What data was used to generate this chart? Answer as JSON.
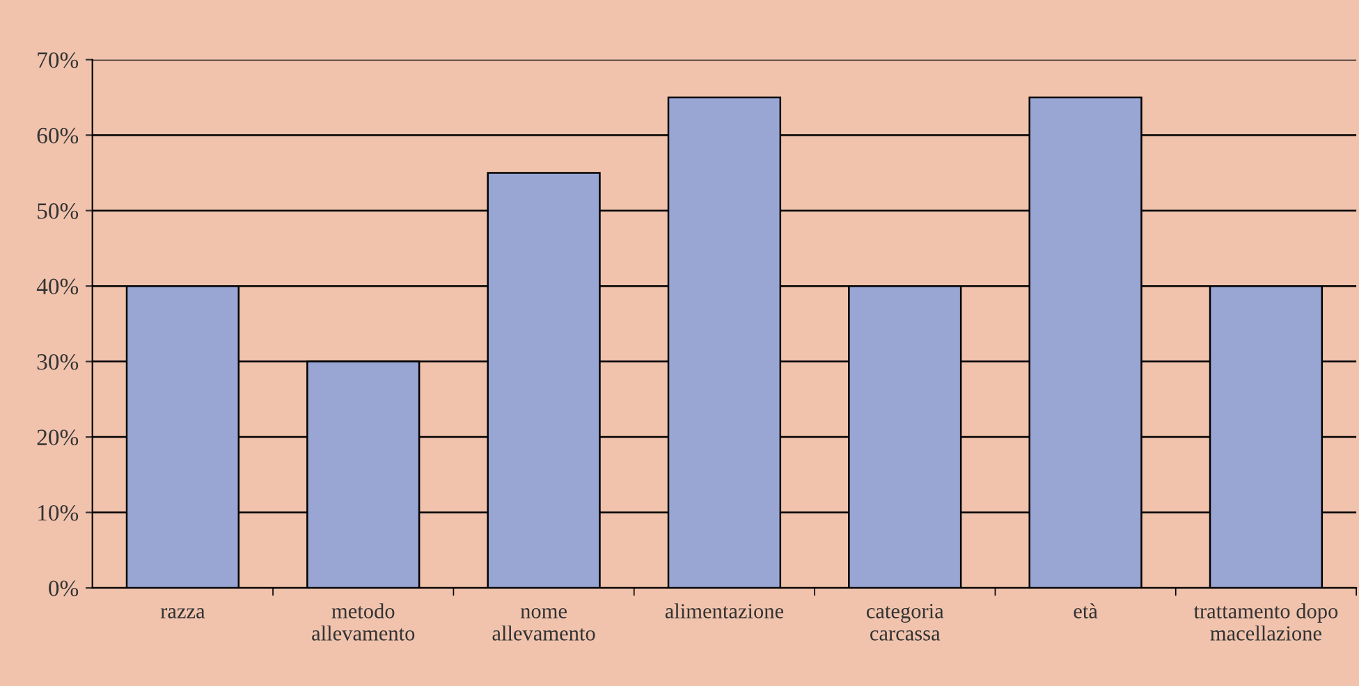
{
  "chart_data": {
    "type": "bar",
    "categories": [
      "razza",
      "metodo\nallevamento",
      "nome\nallevamento",
      "alimentazione",
      "categoria\ncarcassa",
      "età",
      "trattamento dopo\nmacellazione"
    ],
    "values": [
      40,
      30,
      55,
      65,
      40,
      65,
      40
    ],
    "color": "#99a6d4",
    "ylim": [
      0,
      70
    ],
    "yticks": [
      {
        "value": 0,
        "label": "0%"
      },
      {
        "value": 10,
        "label": "10%"
      },
      {
        "value": 20,
        "label": "20%"
      },
      {
        "value": 30,
        "label": "30%"
      },
      {
        "value": 40,
        "label": "40%"
      },
      {
        "value": 50,
        "label": "50%"
      },
      {
        "value": 60,
        "label": "60%"
      },
      {
        "value": 70,
        "label": "70%"
      }
    ],
    "grid": "y",
    "legend": false
  }
}
